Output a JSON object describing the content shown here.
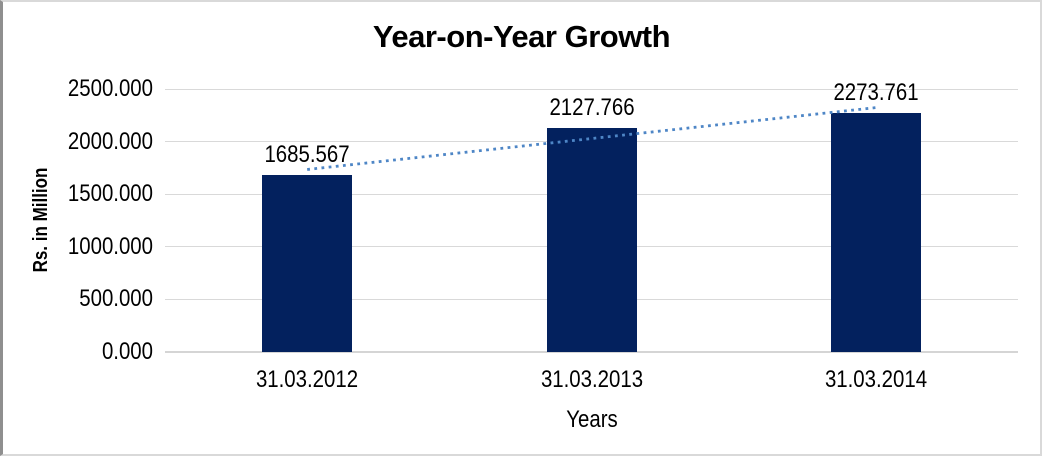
{
  "chart_data": {
    "type": "bar",
    "title": "Year-on-Year Growth",
    "categories": [
      "31.03.2012",
      "31.03.2013",
      "31.03.2014"
    ],
    "values": [
      1685.567,
      2127.766,
      2273.761
    ],
    "data_labels": [
      "1685.567",
      "2127.766",
      "2273.761"
    ],
    "xlabel": "Years",
    "ylabel": "Rs. in Million",
    "ylim": [
      0,
      2500
    ],
    "ytick_step": 500,
    "yticks": [
      {
        "value": 0,
        "label": "0.000"
      },
      {
        "value": 500,
        "label": "500.000"
      },
      {
        "value": 1000,
        "label": "1000.000"
      },
      {
        "value": 1500,
        "label": "1500.000"
      },
      {
        "value": 2000,
        "label": "2000.000"
      },
      {
        "value": 2500,
        "label": "2500.000"
      }
    ],
    "grid": true,
    "legend": "none",
    "trendline": {
      "type": "linear",
      "style": "dotted",
      "color": "#4E86C6"
    },
    "colors": {
      "bar": "#03215E",
      "gridline": "#D9D9D9",
      "baseline": "#D5D5D5",
      "text": "#000000",
      "frame_border": "#D9D9D9",
      "frame_border_left": "#8F8F8F"
    }
  }
}
